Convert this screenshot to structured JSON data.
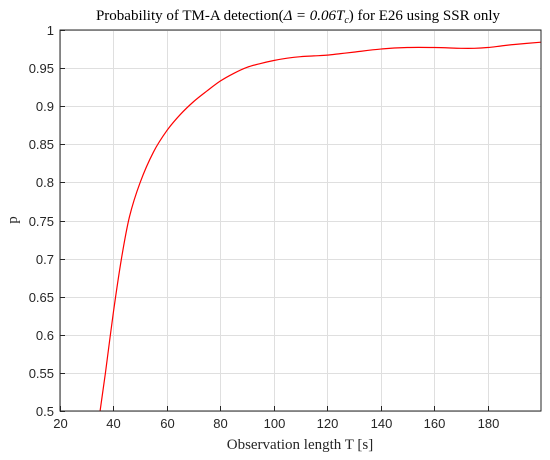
{
  "chart_data": {
    "type": "line",
    "title_prefix": "Probability of TM-A detection(",
    "title_delta": "Δ = 0.06",
    "title_T": "T",
    "title_sub": "c",
    "title_suffix": ") for E26 using SSR only",
    "xlabel": "Observation length T [s]",
    "ylabel": "p",
    "xlim": [
      20,
      200
    ],
    "ylim": [
      0.5,
      1.0
    ],
    "xticks": [
      20,
      40,
      60,
      80,
      100,
      120,
      140,
      160,
      180
    ],
    "xtick_labels": [
      "20",
      "40",
      "60",
      "80",
      "100",
      "120",
      "140",
      "160",
      "180"
    ],
    "yticks": [
      0.5,
      0.55,
      0.6,
      0.65,
      0.7,
      0.75,
      0.8,
      0.85,
      0.9,
      0.95,
      1.0
    ],
    "ytick_labels": [
      "0.5",
      "0.55",
      "0.6",
      "0.65",
      "0.7",
      "0.75",
      "0.8",
      "0.85",
      "0.9",
      "0.95",
      "1"
    ],
    "grid": true,
    "line_color": "#ff0000",
    "series": [
      {
        "x": [
          35,
          37,
          40,
          43,
          46,
          50,
          55,
          60,
          65,
          70,
          75,
          80,
          85,
          90,
          95,
          100,
          105,
          110,
          115,
          120,
          125,
          130,
          140,
          150,
          160,
          170,
          175,
          180,
          185,
          190,
          200
        ],
        "y": [
          0.5,
          0.55,
          0.63,
          0.7,
          0.755,
          0.8,
          0.84,
          0.868,
          0.889,
          0.906,
          0.92,
          0.933,
          0.943,
          0.951,
          0.956,
          0.96,
          0.963,
          0.965,
          0.966,
          0.967,
          0.969,
          0.971,
          0.975,
          0.977,
          0.977,
          0.976,
          0.976,
          0.977,
          0.979,
          0.981,
          0.984
        ]
      }
    ]
  }
}
